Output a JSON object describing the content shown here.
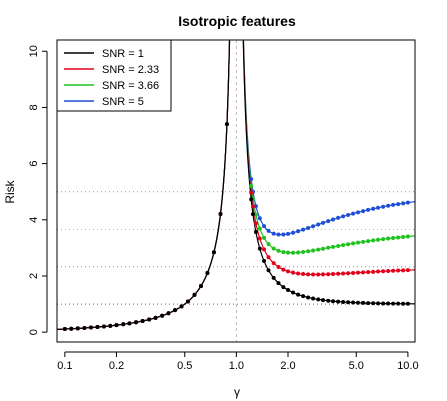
{
  "chart_data": {
    "type": "line",
    "title": "Isotropic features",
    "xlabel": "γ",
    "ylabel": "Risk",
    "x_scale": "log",
    "xlim": [
      0.09,
      11
    ],
    "ylim": [
      -0.35,
      10.4
    ],
    "x_ticks": [
      0.1,
      0.2,
      0.5,
      1.0,
      2.0,
      5.0,
      10.0
    ],
    "x_tick_labels": [
      "0.1",
      "0.2",
      "0.5",
      "1.0",
      "2.0",
      "5.0",
      "10.0"
    ],
    "y_ticks": [
      0,
      2,
      4,
      6,
      8,
      10
    ],
    "y_tick_labels": [
      "0",
      "2",
      "4",
      "6",
      "8",
      "10"
    ],
    "grid": false,
    "legend_position": "top-left",
    "vertical_reference_x": 1.0,
    "noise_variance": 1,
    "series": [
      {
        "name": "SNR = 1",
        "snr": 1,
        "color": "#000000"
      },
      {
        "name": "SNR = 2.33",
        "snr": 2.33,
        "color": "#e3001b"
      },
      {
        "name": "SNR = 3.66",
        "snr": 3.66,
        "color": "#1ec31e"
      },
      {
        "name": "SNR = 5",
        "snr": 5,
        "color": "#1f4fd8"
      }
    ],
    "points_x": [
      0.1,
      0.109,
      0.119,
      0.13,
      0.142,
      0.155,
      0.169,
      0.184,
      0.2,
      0.219,
      0.238,
      0.26,
      0.284,
      0.31,
      0.338,
      0.369,
      0.402,
      0.439,
      0.479,
      0.522,
      0.57,
      0.622,
      0.678,
      0.74,
      0.808,
      0.881,
      0.93,
      1.22,
      1.25,
      1.3,
      1.37,
      1.45,
      1.54,
      1.65,
      1.76,
      1.88,
      2.0,
      2.14,
      2.29,
      2.45,
      2.62,
      2.8,
      3.0,
      3.2,
      3.43,
      3.66,
      3.92,
      4.19,
      4.48,
      4.79,
      5.12,
      5.48,
      5.86,
      6.27,
      6.7,
      7.17,
      7.67,
      8.2,
      8.77,
      9.38,
      10.0
    ]
  }
}
